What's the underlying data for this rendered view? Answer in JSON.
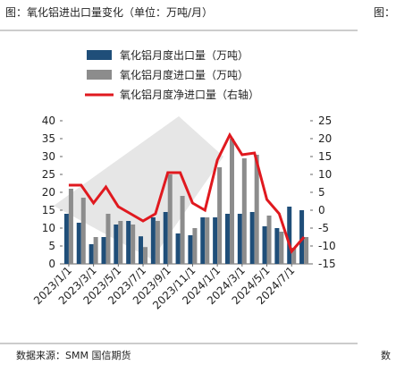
{
  "title": "图：氧化铝进出口量变化（单位：万吨/月）",
  "source": "数据来源：SMM 国信期货",
  "clipped_title": "图：",
  "clipped_source": "数",
  "chart_data": {
    "type": "bar_line",
    "categories": [
      "2023/1/1",
      null,
      "2023/3/1",
      null,
      "2023/5/1",
      null,
      "2023/7/1",
      null,
      "2023/9/1",
      null,
      "2023/11/1",
      null,
      "2024/1/1",
      null,
      "2024/3/1",
      null,
      "2024/5/1",
      null,
      "2024/7/1",
      null
    ],
    "series": [
      {
        "name": "氧化铝月度出口量（万吨）",
        "color": "#1f4e79",
        "kind": "bar",
        "values": [
          14,
          11.5,
          5.5,
          7.5,
          11,
          12,
          7.7,
          13,
          14.5,
          8.5,
          8,
          13,
          13,
          14,
          14,
          14.5,
          10.5,
          10,
          16,
          15
        ]
      },
      {
        "name": "氧化铝月度进口量（万吨）",
        "color": "#8c8c8c",
        "kind": "bar",
        "values": [
          21,
          18.5,
          7.5,
          14,
          12,
          11,
          4.7,
          12,
          25,
          19,
          10,
          13,
          27,
          35,
          29.5,
          30.5,
          13.5,
          9,
          4.5,
          7.5
        ]
      },
      {
        "name": "氧化铝月度净进口量（右轴）",
        "color": "#e0191f",
        "kind": "line",
        "axis": "y2",
        "values": [
          7,
          7,
          2,
          6.5,
          1,
          -1,
          -3,
          -1,
          10.5,
          10.5,
          2,
          0,
          14,
          21,
          15.5,
          16,
          3,
          -1,
          -11.5,
          -7.5
        ]
      }
    ],
    "ylim": [
      0,
      40
    ],
    "yticks": [
      0,
      5,
      10,
      15,
      20,
      25,
      30,
      35,
      40
    ],
    "y2lim": [
      -15,
      25
    ],
    "y2ticks": [
      -15,
      -10,
      -5,
      0,
      5,
      10,
      15,
      20,
      25
    ]
  }
}
